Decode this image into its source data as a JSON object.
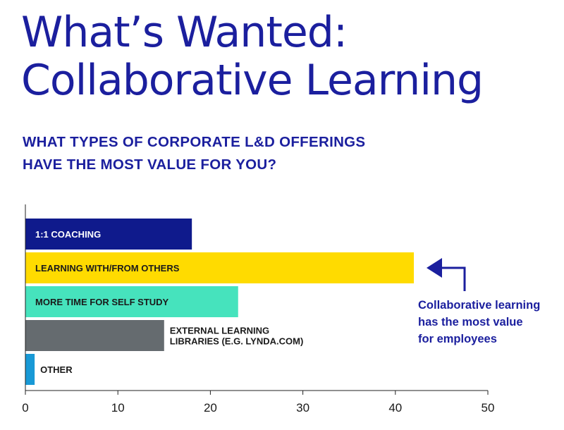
{
  "title_lines": [
    "What’s Wanted:",
    "Collaborative Learning"
  ],
  "subtitle_lines": [
    "WHAT TYPES OF CORPORATE L&D OFFERINGS",
    "HAVE THE MOST VALUE FOR YOU?"
  ],
  "annotation_lines": [
    "Collaborative learning",
    "has the most value",
    "for employees"
  ],
  "chart_data": {
    "type": "bar",
    "orientation": "horizontal",
    "categories": [
      [
        "1:1 COACHING"
      ],
      [
        "LEARNING WITH/FROM OTHERS"
      ],
      [
        "MORE TIME FOR SELF STUDY"
      ],
      [
        "EXTERNAL LEARNING",
        "LIBRARIES (E.G. LYNDA.COM)"
      ],
      [
        "OTHER"
      ]
    ],
    "values": [
      18,
      42,
      23,
      15,
      1
    ],
    "colors": [
      "#0f1a8c",
      "#ffdb00",
      "#46e3bd",
      "#656b6f",
      "#1899d6"
    ],
    "label_colors": [
      "#ffffff",
      "#1a1a1a",
      "#1a1a1a",
      "#1a1a1a",
      "#1a1a1a"
    ],
    "xlim": [
      0,
      50
    ],
    "xticks": [
      0,
      10,
      20,
      30,
      40,
      50
    ],
    "grid": false,
    "highlight_index": 1,
    "arrow_color": "#1b1f9e"
  }
}
